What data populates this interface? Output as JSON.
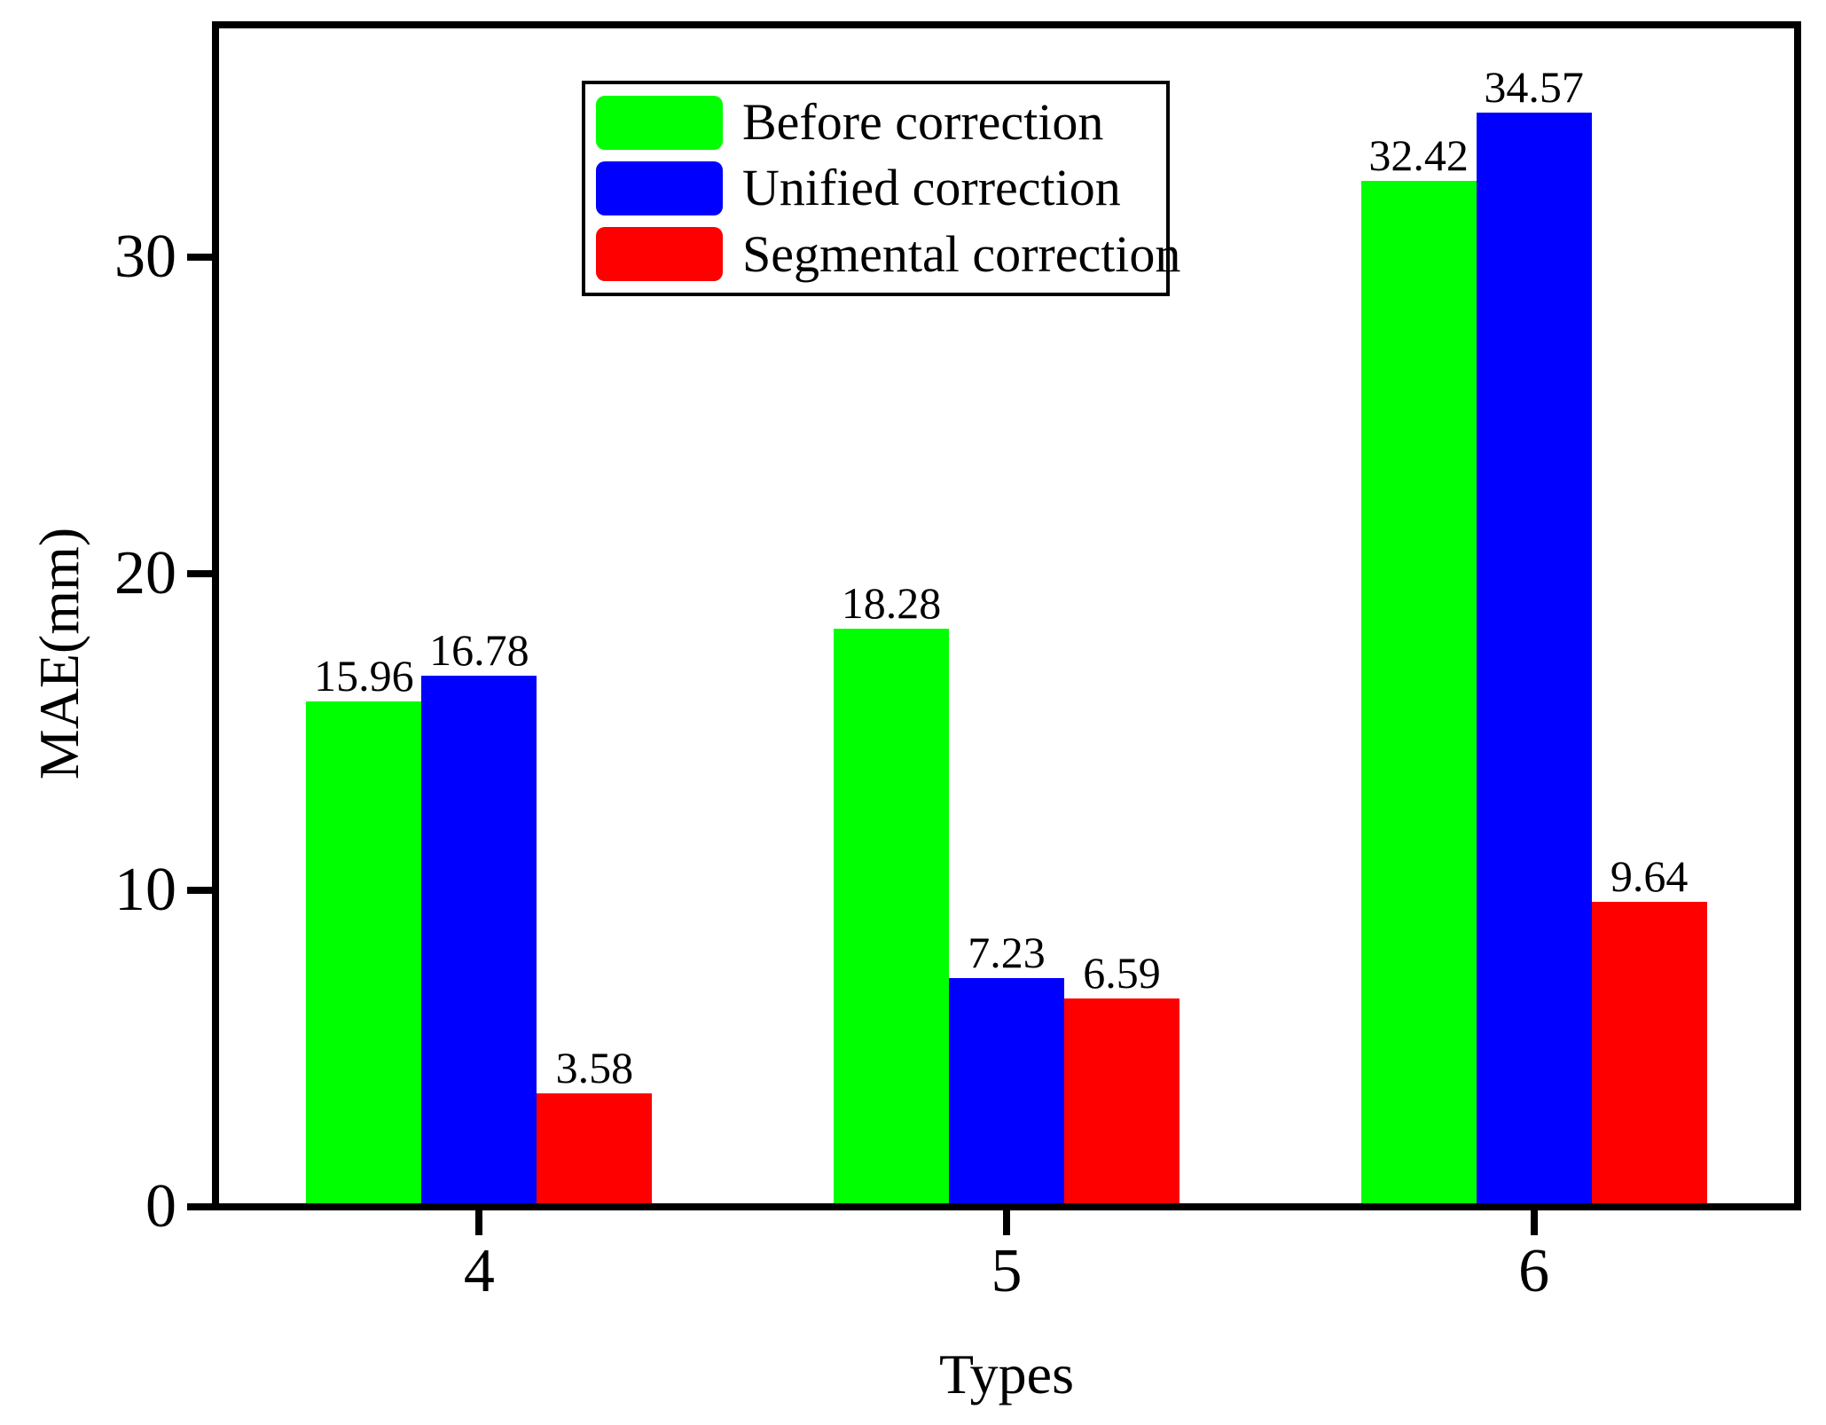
{
  "chart_data": {
    "type": "bar",
    "title": "",
    "xlabel": "Types",
    "ylabel": "MAE(mm)",
    "categories": [
      "4",
      "5",
      "6"
    ],
    "series": [
      {
        "name": "Before correction",
        "color": "#00FF00",
        "values": [
          15.96,
          18.28,
          32.42
        ],
        "labels": [
          "15.96",
          "18.28",
          "32.42"
        ]
      },
      {
        "name": "Unified correction",
        "color": "#0000FF",
        "values": [
          16.78,
          7.23,
          34.57
        ],
        "labels": [
          "16.78",
          "7.23",
          "34.57"
        ]
      },
      {
        "name": "Segmental correction",
        "color": "#FF0000",
        "values": [
          3.58,
          6.59,
          9.64
        ],
        "labels": [
          "3.58",
          "6.59",
          "9.64"
        ]
      }
    ],
    "ylim": [
      0,
      37.35
    ],
    "yticks": [
      0,
      10,
      20,
      30
    ],
    "grid": false,
    "bar_value_labels_shown": true,
    "legend_position": "upper-left-inside",
    "axis_color": "#000000",
    "background_color": "#FFFFFF"
  }
}
